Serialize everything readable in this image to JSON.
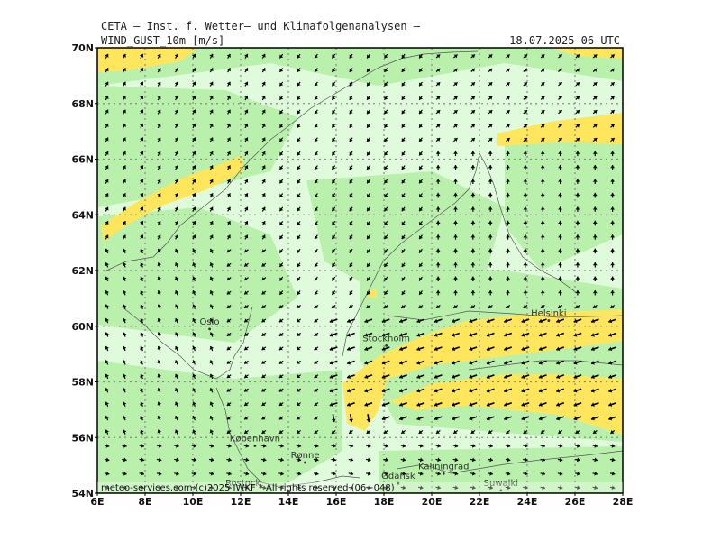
{
  "header": {
    "title_top": "CETA – Inst. f. Wetter– und Klimafolgenanalysen –",
    "variable": "WIND_GUST_10m [m/s]",
    "valid_time": "18.07.2025 06 UTC"
  },
  "colors": {
    "background": "#ffffff",
    "calm": "#e0fbdc",
    "light": "#b8f0ac",
    "strong": "#ffe65c",
    "grid": "#888888",
    "coast": "#555555",
    "arrow": "#000000"
  },
  "axes": {
    "lat_labels": [
      "70N",
      "68N",
      "66N",
      "64N",
      "62N",
      "60N",
      "58N",
      "56N",
      "54N"
    ],
    "lon_labels": [
      "6E",
      "8E",
      "10E",
      "12E",
      "14E",
      "16E",
      "18E",
      "20E",
      "22E",
      "24E",
      "26E",
      "28E"
    ]
  },
  "cities": [
    {
      "name": "Oslo",
      "lon": 10.7,
      "lat": 59.9
    },
    {
      "name": "Stockholm",
      "lon": 18.1,
      "lat": 59.3
    },
    {
      "name": "Helsinki",
      "lon": 24.9,
      "lat": 60.2
    },
    {
      "name": "København",
      "lon": 12.6,
      "lat": 55.7
    },
    {
      "name": "Rønne",
      "lon": 14.7,
      "lat": 55.1
    },
    {
      "name": "Rostock",
      "lon": 12.1,
      "lat": 54.1
    },
    {
      "name": "Kaliningrad",
      "lon": 20.5,
      "lat": 54.7
    },
    {
      "name": "Suwalki",
      "lon": 22.9,
      "lat": 54.1
    },
    {
      "name": "Gdansk",
      "lon": 18.6,
      "lat": 54.35
    }
  ],
  "credit": "meteo-services.com (c)2025 IWKF * All rights reserved (06+048)"
}
